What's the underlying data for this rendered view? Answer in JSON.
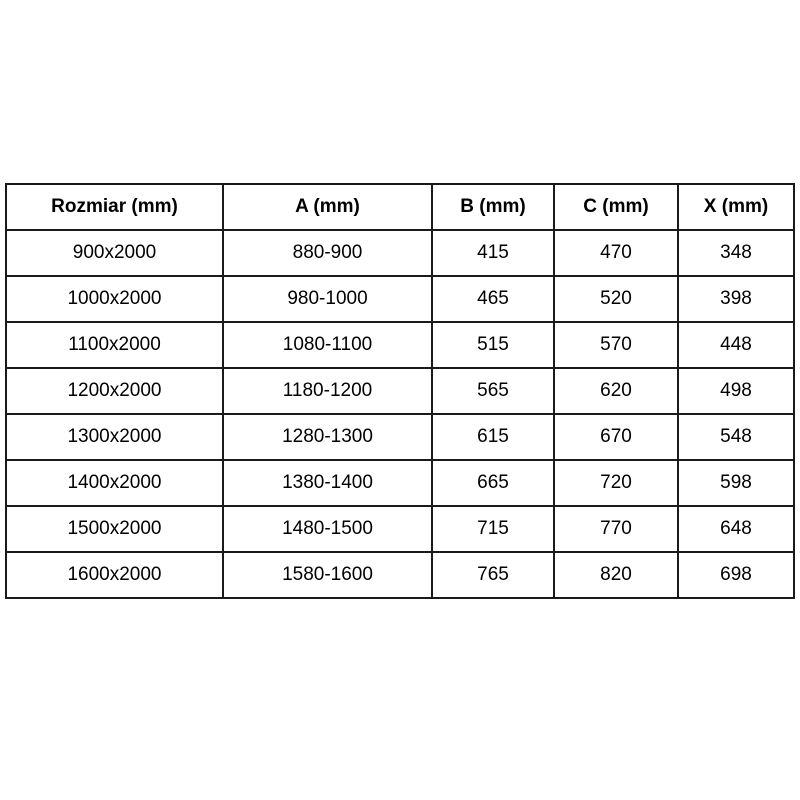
{
  "table": {
    "headers": [
      "Rozmiar (mm)",
      "A (mm)",
      "B (mm)",
      "C (mm)",
      "X (mm)"
    ],
    "rows": [
      [
        "900x2000",
        "880-900",
        "415",
        "470",
        "348"
      ],
      [
        "1000x2000",
        "980-1000",
        "465",
        "520",
        "398"
      ],
      [
        "1100x2000",
        "1080-1100",
        "515",
        "570",
        "448"
      ],
      [
        "1200x2000",
        "1180-1200",
        "565",
        "620",
        "498"
      ],
      [
        "1300x2000",
        "1280-1300",
        "615",
        "670",
        "548"
      ],
      [
        "1400x2000",
        "1380-1400",
        "665",
        "720",
        "598"
      ],
      [
        "1500x2000",
        "1480-1500",
        "715",
        "770",
        "648"
      ],
      [
        "1600x2000",
        "1580-1600",
        "765",
        "820",
        "698"
      ]
    ],
    "border_color": "#1a1a1a",
    "background_color": "#ffffff"
  }
}
